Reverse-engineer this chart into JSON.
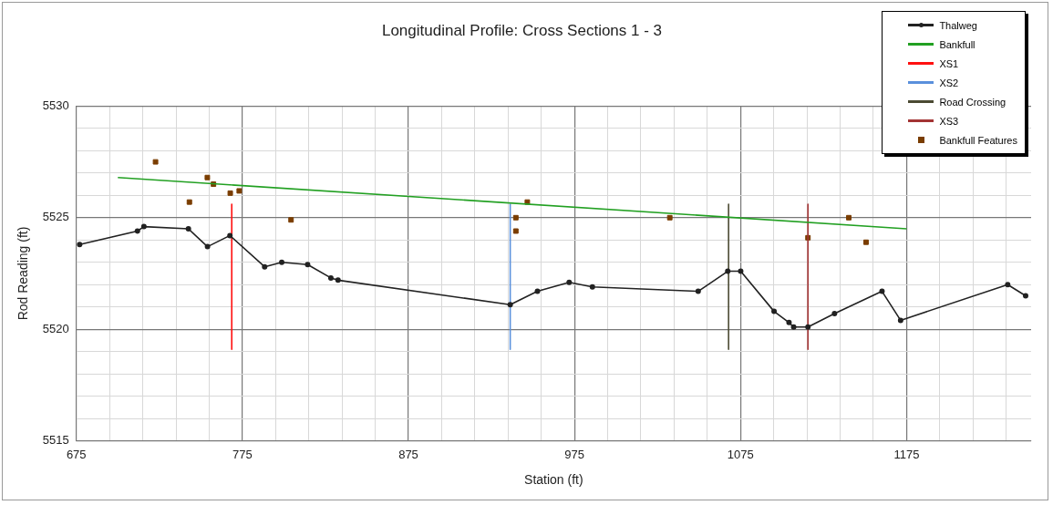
{
  "chart_data": {
    "type": "line",
    "title": "Longitudinal Profile: Cross Sections 1 - 3",
    "xlabel": "Station (ft)",
    "ylabel": "Rod Reading (ft)",
    "xlim": [
      675,
      1250
    ],
    "ylim": [
      5515,
      5530
    ],
    "xticks": [
      675,
      {
        "value": 695,
        "label": null
      },
      {
        "value": 715,
        "label": null
      },
      {
        "value": 735,
        "label": null
      },
      {
        "value": 755,
        "label": null
      },
      775,
      {
        "value": 795,
        "label": null
      },
      {
        "value": 815,
        "label": null
      },
      {
        "value": 835,
        "label": null
      },
      {
        "value": 855,
        "label": null
      },
      875,
      {
        "value": 895,
        "label": null
      },
      {
        "value": 915,
        "label": null
      },
      {
        "value": 935,
        "label": null
      },
      {
        "value": 955,
        "label": null
      },
      975,
      {
        "value": 995,
        "label": null
      },
      {
        "value": 1015,
        "label": null
      },
      {
        "value": 1035,
        "label": null
      },
      {
        "value": 1055,
        "label": null
      },
      1075,
      {
        "value": 1095,
        "label": null
      },
      {
        "value": 1115,
        "label": null
      },
      {
        "value": 1135,
        "label": null
      },
      {
        "value": 1155,
        "label": null
      },
      1175,
      {
        "value": 1195,
        "label": null
      },
      {
        "value": 1215,
        "label": null
      },
      {
        "value": 1235,
        "label": null
      }
    ],
    "yticks": [
      5515,
      {
        "value": 5516,
        "label": null
      },
      {
        "value": 5517,
        "label": null
      },
      {
        "value": 5518,
        "label": null
      },
      {
        "value": 5519,
        "label": null
      },
      5520,
      {
        "value": 5521,
        "label": null
      },
      {
        "value": 5522,
        "label": null
      },
      {
        "value": 5523,
        "label": null
      },
      {
        "value": 5524,
        "label": null
      },
      5525,
      {
        "value": 5526,
        "label": null
      },
      {
        "value": 5527,
        "label": null
      },
      {
        "value": 5528,
        "label": null
      },
      {
        "value": 5529,
        "label": null
      },
      5530
    ],
    "grid": true,
    "legend": "top right",
    "series": [
      {
        "name": "Thalweg",
        "type": "line",
        "color": "#222222",
        "marker": "circle",
        "x": [
          677,
          711.8,
          715.7,
          742.5,
          754,
          767.5,
          788.4,
          798.7,
          814.3,
          828.3,
          832.6,
          936.3,
          952.7,
          971.8,
          985.8,
          1049.5,
          1067.3,
          1075.1,
          1095.2,
          1104.2,
          1107,
          1115.6,
          1131.6,
          1160.2,
          1171.4,
          1235.9,
          1246.7
        ],
        "values": [
          5523.8,
          5524.4,
          5524.6,
          5524.5,
          5523.7,
          5524.2,
          5522.8,
          5523.0,
          5522.9,
          5522.3,
          5522.2,
          5521.1,
          5521.7,
          5522.1,
          5521.9,
          5521.7,
          5522.6,
          5522.6,
          5520.8,
          5520.3,
          5520.1,
          5520.1,
          5520.7,
          5521.7,
          5520.4,
          5522.0,
          5521.5
        ]
      },
      {
        "name": "Bankfull",
        "type": "line",
        "color": "#22a022",
        "marker": "none",
        "x": [
          700,
          1175
        ],
        "values": [
          5526.8,
          5524.5
        ]
      },
      {
        "name": "XS1",
        "type": "line",
        "color": "#ff1010",
        "marker": "none",
        "x": [
          768.6,
          768.6
        ],
        "values": [
          5525.6,
          5519.1
        ]
      },
      {
        "name": "XS2",
        "type": "line",
        "color": "#5a90dc",
        "marker": "none",
        "x": [
          936.3,
          936.3
        ],
        "values": [
          5525.6,
          5519.1
        ]
      },
      {
        "name": "Road Crossing",
        "type": "line",
        "color": "#4b4a32",
        "marker": "none",
        "x": [
          1067.8,
          1067.8
        ],
        "values": [
          5525.6,
          5519.1
        ]
      },
      {
        "name": "XS3",
        "type": "line",
        "color": "#a33434",
        "marker": "none",
        "x": [
          1115.6,
          1115.6
        ],
        "values": [
          5525.6,
          5519.1
        ]
      },
      {
        "name": "Bankfull Features",
        "type": "scatter",
        "color": "#7a3d00",
        "marker": "square",
        "x": [
          722.7,
          743.1,
          753.9,
          757.6,
          767.7,
          773.1,
          804.3,
          946.6,
          939.7,
          939.7,
          1032.4,
          1115.6,
          1140.2,
          1150.6
        ],
        "values": [
          5527.5,
          5525.7,
          5526.8,
          5526.5,
          5526.1,
          5526.2,
          5524.9,
          5525.7,
          5525.0,
          5524.4,
          5525.0,
          5524.1,
          5525.0,
          5523.9
        ]
      }
    ]
  }
}
